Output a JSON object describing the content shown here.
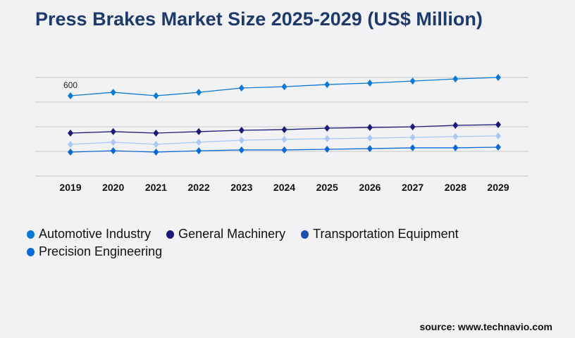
{
  "chart_data": {
    "type": "line",
    "title": "Press Brakes Market Size 2025-2029 (US$ Million)",
    "categories": [
      "2019",
      "2020",
      "2021",
      "2022",
      "2023",
      "2024",
      "2025",
      "2026",
      "2027",
      "2028",
      "2029"
    ],
    "ylim": [
      0,
      737
    ],
    "grid": true,
    "legend_placement": "bottom",
    "annotation": "600",
    "series": [
      {
        "name": "Automotive Industry",
        "color": "#0a7ad6",
        "values": [
          600,
          626,
          600,
          626,
          658,
          668,
          684,
          695,
          710,
          726,
          737
        ]
      },
      {
        "name": "General Machinery",
        "color": "#1c1a78",
        "values": [
          321,
          332,
          321,
          332,
          342,
          347,
          358,
          363,
          368,
          379,
          384
        ]
      },
      {
        "name": "Transportation Equipment",
        "color": "#a9c8f6",
        "legend_color": "#1a4fb0",
        "values": [
          237,
          253,
          237,
          253,
          268,
          274,
          279,
          284,
          289,
          295,
          300
        ]
      },
      {
        "name": "Precision Engineering",
        "color": "#0c6ad6",
        "values": [
          179,
          189,
          179,
          189,
          195,
          195,
          200,
          205,
          211,
          211,
          216
        ]
      }
    ]
  },
  "source": "source: www.technavio.com"
}
